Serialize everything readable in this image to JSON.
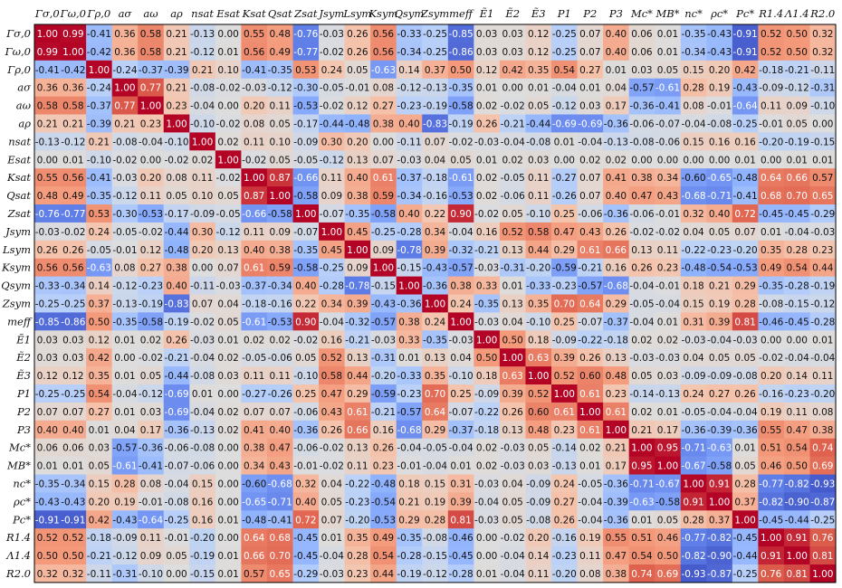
{
  "chart_data": {
    "type": "heatmap",
    "title": "",
    "xlabel": "",
    "ylabel": "",
    "labels": [
      "Γσ,0",
      "Γω,0",
      "Γρ,0",
      "aσ",
      "aω",
      "aρ",
      "nsat",
      "Esat",
      "Ksat",
      "Qsat",
      "Zsat",
      "Jsym",
      "Lsym",
      "Ksym",
      "Qsym",
      "Zsym",
      "meff",
      "Ẽ1",
      "Ẽ2",
      "Ẽ3",
      "P1",
      "P2",
      "P3",
      "Mc*",
      "MB*",
      "nc*",
      "ρc*",
      "Pc*",
      "R1.4",
      "Λ1.4",
      "R2.0"
    ],
    "value_range": [
      -1,
      1
    ],
    "colormap": "coolwarm",
    "matrix": [
      [
        1.0,
        0.99,
        -0.41,
        0.36,
        0.58,
        0.21,
        -0.13,
        0.0,
        0.55,
        0.48,
        -0.76,
        -0.03,
        0.26,
        0.56,
        -0.33,
        -0.25,
        -0.85,
        0.03,
        0.03,
        0.12,
        -0.25,
        0.07,
        0.4,
        0.06,
        0.01,
        -0.35,
        -0.43,
        -0.91,
        0.52,
        0.5,
        0.32
      ],
      [
        0.99,
        1.0,
        -0.42,
        0.36,
        0.58,
        0.21,
        -0.12,
        0.01,
        0.56,
        0.49,
        -0.77,
        -0.02,
        0.26,
        0.56,
        -0.34,
        -0.25,
        -0.86,
        0.03,
        0.03,
        0.12,
        -0.25,
        0.07,
        0.4,
        0.06,
        0.01,
        -0.34,
        -0.43,
        -0.91,
        0.52,
        0.5,
        0.32
      ],
      [
        -0.41,
        -0.42,
        1.0,
        -0.24,
        -0.37,
        -0.39,
        0.21,
        0.1,
        -0.41,
        -0.35,
        0.53,
        0.24,
        0.05,
        -0.63,
        0.14,
        0.37,
        0.5,
        0.12,
        0.42,
        0.35,
        0.54,
        0.27,
        0.01,
        0.03,
        0.05,
        0.15,
        0.2,
        0.42,
        -0.18,
        -0.21,
        -0.11
      ],
      [
        0.36,
        0.36,
        -0.24,
        1.0,
        0.77,
        0.21,
        -0.08,
        -0.02,
        -0.03,
        -0.12,
        -0.3,
        -0.05,
        -0.01,
        0.08,
        -0.12,
        -0.13,
        -0.35,
        0.01,
        -0.0,
        0.01,
        -0.04,
        0.01,
        0.04,
        -0.57,
        -0.61,
        0.28,
        0.19,
        -0.43,
        -0.09,
        -0.12,
        -0.31
      ],
      [
        0.58,
        0.58,
        -0.37,
        0.77,
        1.0,
        0.23,
        -0.04,
        0.0,
        0.2,
        0.11,
        -0.53,
        -0.02,
        0.12,
        0.27,
        -0.23,
        -0.19,
        -0.58,
        0.02,
        -0.02,
        0.05,
        -0.12,
        0.03,
        0.17,
        -0.36,
        -0.41,
        0.08,
        -0.01,
        -0.64,
        0.11,
        0.09,
        -0.1
      ],
      [
        0.21,
        0.21,
        -0.39,
        0.21,
        0.23,
        1.0,
        -0.1,
        -0.02,
        0.08,
        0.05,
        -0.17,
        -0.44,
        -0.48,
        0.38,
        0.4,
        -0.83,
        -0.19,
        0.26,
        -0.21,
        -0.44,
        -0.69,
        -0.69,
        -0.36,
        -0.06,
        -0.07,
        -0.04,
        -0.08,
        -0.25,
        -0.01,
        0.05,
        0.0
      ],
      [
        -0.13,
        -0.12,
        0.21,
        -0.08,
        -0.04,
        -0.1,
        1.0,
        0.02,
        0.11,
        0.1,
        -0.09,
        0.3,
        0.2,
        -0.0,
        -0.11,
        0.07,
        -0.02,
        -0.03,
        -0.04,
        -0.08,
        0.01,
        -0.04,
        -0.13,
        -0.08,
        -0.06,
        0.15,
        0.16,
        0.16,
        -0.2,
        -0.19,
        -0.15
      ],
      [
        0.0,
        0.01,
        -0.1,
        -0.02,
        0.0,
        -0.02,
        0.02,
        1.0,
        -0.02,
        0.05,
        -0.05,
        -0.12,
        0.13,
        0.07,
        -0.03,
        0.04,
        0.05,
        0.01,
        0.02,
        0.03,
        0.0,
        0.02,
        0.02,
        -0.0,
        -0.0,
        -0.0,
        0.0,
        0.01,
        0.0,
        0.01,
        0.01
      ],
      [
        0.55,
        0.56,
        -0.41,
        -0.03,
        0.2,
        0.08,
        0.11,
        -0.02,
        1.0,
        0.87,
        -0.66,
        0.11,
        0.4,
        0.61,
        -0.37,
        -0.18,
        -0.61,
        0.02,
        -0.05,
        0.11,
        -0.27,
        0.07,
        0.41,
        0.38,
        0.34,
        -0.6,
        -0.65,
        -0.48,
        0.64,
        0.66,
        0.57
      ],
      [
        0.48,
        0.49,
        -0.35,
        -0.12,
        0.11,
        0.05,
        0.1,
        0.05,
        0.87,
        1.0,
        -0.58,
        0.09,
        0.38,
        0.59,
        -0.34,
        -0.16,
        -0.53,
        0.02,
        -0.06,
        0.11,
        -0.26,
        0.07,
        0.4,
        0.47,
        0.43,
        -0.68,
        -0.71,
        -0.41,
        0.68,
        0.7,
        0.65
      ],
      [
        -0.76,
        -0.77,
        0.53,
        -0.3,
        -0.53,
        -0.17,
        -0.09,
        -0.05,
        -0.66,
        -0.58,
        1.0,
        -0.07,
        -0.35,
        -0.58,
        0.4,
        0.22,
        0.9,
        -0.02,
        0.05,
        -0.1,
        0.25,
        -0.06,
        -0.36,
        -0.06,
        -0.01,
        0.32,
        0.4,
        0.72,
        -0.45,
        -0.45,
        -0.29
      ],
      [
        -0.03,
        -0.02,
        0.24,
        -0.05,
        -0.02,
        -0.44,
        0.3,
        -0.12,
        0.11,
        0.09,
        -0.07,
        1.0,
        0.45,
        -0.25,
        -0.28,
        0.34,
        -0.04,
        0.16,
        0.52,
        0.58,
        0.47,
        0.43,
        0.26,
        -0.02,
        -0.02,
        0.04,
        0.05,
        0.07,
        0.01,
        -0.04,
        -0.03
      ],
      [
        0.26,
        0.26,
        -0.05,
        -0.01,
        0.12,
        -0.48,
        0.2,
        0.13,
        0.4,
        0.38,
        -0.35,
        0.45,
        1.0,
        0.09,
        -0.78,
        0.39,
        -0.32,
        -0.21,
        0.13,
        0.44,
        0.29,
        0.61,
        0.66,
        0.13,
        0.11,
        -0.22,
        -0.23,
        -0.2,
        0.35,
        0.28,
        0.23
      ],
      [
        0.56,
        0.56,
        -0.63,
        0.08,
        0.27,
        0.38,
        -0.0,
        0.07,
        0.61,
        0.59,
        -0.58,
        -0.25,
        0.09,
        1.0,
        -0.15,
        -0.43,
        -0.57,
        -0.03,
        -0.31,
        -0.2,
        -0.59,
        -0.21,
        0.16,
        0.26,
        0.23,
        -0.48,
        -0.54,
        -0.53,
        0.49,
        0.54,
        0.44
      ],
      [
        -0.33,
        -0.34,
        0.14,
        -0.12,
        -0.23,
        0.4,
        -0.11,
        -0.03,
        -0.37,
        -0.34,
        0.4,
        -0.28,
        -0.78,
        -0.15,
        1.0,
        -0.36,
        0.38,
        0.33,
        0.01,
        -0.33,
        -0.23,
        -0.57,
        -0.68,
        -0.04,
        -0.01,
        0.18,
        0.21,
        0.29,
        -0.35,
        -0.28,
        -0.19
      ],
      [
        -0.25,
        -0.25,
        0.37,
        -0.13,
        -0.19,
        -0.83,
        0.07,
        0.04,
        -0.18,
        -0.16,
        0.22,
        0.34,
        0.39,
        -0.43,
        -0.36,
        1.0,
        0.24,
        -0.35,
        0.13,
        0.35,
        0.7,
        0.64,
        0.29,
        -0.05,
        -0.04,
        0.15,
        0.19,
        0.28,
        -0.08,
        -0.15,
        -0.12
      ],
      [
        -0.85,
        -0.86,
        0.5,
        -0.35,
        -0.58,
        -0.19,
        -0.02,
        0.05,
        -0.61,
        -0.53,
        0.9,
        -0.04,
        -0.32,
        -0.57,
        0.38,
        0.24,
        1.0,
        -0.03,
        0.04,
        -0.1,
        0.25,
        -0.07,
        -0.37,
        -0.04,
        0.01,
        0.31,
        0.39,
        0.81,
        -0.46,
        -0.45,
        -0.28
      ],
      [
        0.03,
        0.03,
        0.12,
        0.01,
        0.02,
        0.26,
        -0.03,
        0.01,
        0.02,
        0.02,
        -0.02,
        0.16,
        -0.21,
        -0.03,
        0.33,
        -0.35,
        -0.03,
        1.0,
        0.5,
        0.18,
        -0.09,
        -0.22,
        -0.18,
        0.02,
        0.02,
        -0.03,
        -0.04,
        -0.03,
        0.0,
        0.0,
        0.01
      ],
      [
        0.03,
        0.03,
        0.42,
        -0.0,
        -0.02,
        -0.21,
        -0.04,
        0.02,
        -0.05,
        -0.06,
        0.05,
        0.52,
        0.13,
        -0.31,
        0.01,
        0.13,
        0.04,
        0.5,
        1.0,
        0.63,
        0.39,
        0.26,
        0.13,
        -0.03,
        -0.03,
        0.04,
        0.05,
        0.05,
        -0.02,
        -0.04,
        -0.04
      ],
      [
        0.12,
        0.12,
        0.35,
        0.01,
        0.05,
        -0.44,
        -0.08,
        0.03,
        0.11,
        0.11,
        -0.1,
        0.58,
        0.44,
        -0.2,
        -0.33,
        0.35,
        -0.1,
        0.18,
        0.63,
        1.0,
        0.52,
        0.6,
        0.48,
        0.05,
        0.03,
        -0.09,
        -0.09,
        -0.08,
        0.2,
        0.14,
        0.11
      ],
      [
        -0.25,
        -0.25,
        0.54,
        -0.04,
        -0.12,
        -0.69,
        0.01,
        0.0,
        -0.27,
        -0.26,
        0.25,
        0.47,
        0.29,
        -0.59,
        -0.23,
        0.7,
        0.25,
        -0.09,
        0.39,
        0.52,
        1.0,
        0.61,
        0.23,
        -0.14,
        -0.13,
        0.24,
        0.27,
        0.26,
        -0.16,
        -0.23,
        -0.2
      ],
      [
        0.07,
        0.07,
        0.27,
        0.01,
        0.03,
        -0.69,
        -0.04,
        0.02,
        0.07,
        0.07,
        -0.06,
        0.43,
        0.61,
        -0.21,
        -0.57,
        0.64,
        -0.07,
        -0.22,
        0.26,
        0.6,
        0.61,
        1.0,
        0.61,
        0.02,
        0.01,
        -0.05,
        -0.04,
        -0.04,
        0.19,
        0.11,
        0.08
      ],
      [
        0.4,
        0.4,
        0.01,
        0.04,
        0.17,
        -0.36,
        -0.13,
        0.02,
        0.41,
        0.4,
        -0.36,
        0.26,
        0.66,
        0.16,
        -0.68,
        0.29,
        -0.37,
        -0.18,
        0.13,
        0.48,
        0.23,
        0.61,
        1.0,
        0.21,
        0.17,
        -0.36,
        -0.39,
        -0.36,
        0.55,
        0.47,
        0.38
      ],
      [
        0.06,
        0.06,
        0.03,
        -0.57,
        -0.36,
        -0.06,
        -0.08,
        -0.0,
        0.38,
        0.47,
        -0.06,
        -0.02,
        0.13,
        0.26,
        -0.04,
        -0.05,
        -0.04,
        0.02,
        -0.03,
        0.05,
        -0.14,
        0.02,
        0.21,
        1.0,
        0.95,
        -0.71,
        -0.63,
        0.01,
        0.51,
        0.54,
        0.74
      ],
      [
        0.01,
        0.01,
        0.05,
        -0.61,
        -0.41,
        -0.07,
        -0.06,
        -0.0,
        0.34,
        0.43,
        -0.01,
        -0.02,
        0.11,
        0.23,
        -0.01,
        -0.04,
        0.01,
        0.02,
        -0.03,
        0.03,
        -0.13,
        0.01,
        0.17,
        0.95,
        1.0,
        -0.67,
        -0.58,
        0.05,
        0.46,
        0.5,
        0.69
      ],
      [
        -0.35,
        -0.34,
        0.15,
        0.28,
        0.08,
        -0.04,
        0.15,
        -0.0,
        -0.6,
        -0.68,
        0.32,
        0.04,
        -0.22,
        -0.48,
        0.18,
        0.15,
        0.31,
        -0.03,
        0.04,
        -0.09,
        0.24,
        -0.05,
        -0.36,
        -0.71,
        -0.67,
        1.0,
        0.91,
        0.28,
        -0.77,
        -0.82,
        -0.93
      ],
      [
        -0.43,
        -0.43,
        0.2,
        0.19,
        -0.01,
        -0.08,
        0.16,
        0.0,
        -0.65,
        -0.71,
        0.4,
        0.05,
        -0.23,
        -0.54,
        0.21,
        0.19,
        0.39,
        -0.04,
        0.05,
        -0.09,
        0.27,
        -0.04,
        -0.39,
        -0.63,
        -0.58,
        0.91,
        1.0,
        0.37,
        -0.82,
        -0.9,
        -0.87
      ],
      [
        -0.91,
        -0.91,
        0.42,
        -0.43,
        -0.64,
        -0.25,
        0.16,
        0.01,
        -0.48,
        -0.41,
        0.72,
        0.07,
        -0.2,
        -0.53,
        0.29,
        0.28,
        0.81,
        -0.03,
        0.05,
        -0.08,
        0.26,
        -0.04,
        -0.36,
        0.01,
        0.05,
        0.28,
        0.37,
        1.0,
        -0.45,
        -0.44,
        -0.25
      ],
      [
        0.52,
        0.52,
        -0.18,
        -0.09,
        0.11,
        -0.01,
        -0.2,
        0.0,
        0.64,
        0.68,
        -0.45,
        0.01,
        0.35,
        0.49,
        -0.35,
        -0.08,
        -0.46,
        0.0,
        -0.02,
        0.2,
        -0.16,
        0.19,
        0.55,
        0.51,
        0.46,
        -0.77,
        -0.82,
        -0.45,
        1.0,
        0.91,
        0.76
      ],
      [
        0.5,
        0.5,
        -0.21,
        -0.12,
        0.09,
        0.05,
        -0.19,
        0.01,
        0.66,
        0.7,
        -0.45,
        -0.04,
        0.28,
        0.54,
        -0.28,
        -0.15,
        -0.45,
        0.0,
        -0.04,
        0.14,
        -0.23,
        0.11,
        0.47,
        0.54,
        0.5,
        -0.82,
        -0.9,
        -0.44,
        0.91,
        1.0,
        0.81
      ],
      [
        0.32,
        0.32,
        -0.11,
        -0.31,
        -0.1,
        0.0,
        -0.15,
        0.01,
        0.57,
        0.65,
        -0.29,
        -0.03,
        0.23,
        0.44,
        -0.19,
        -0.12,
        -0.28,
        0.01,
        -0.04,
        0.11,
        -0.2,
        0.08,
        0.38,
        0.74,
        0.69,
        -0.93,
        -0.87,
        -0.25,
        0.76,
        0.81,
        1.0
      ]
    ]
  }
}
